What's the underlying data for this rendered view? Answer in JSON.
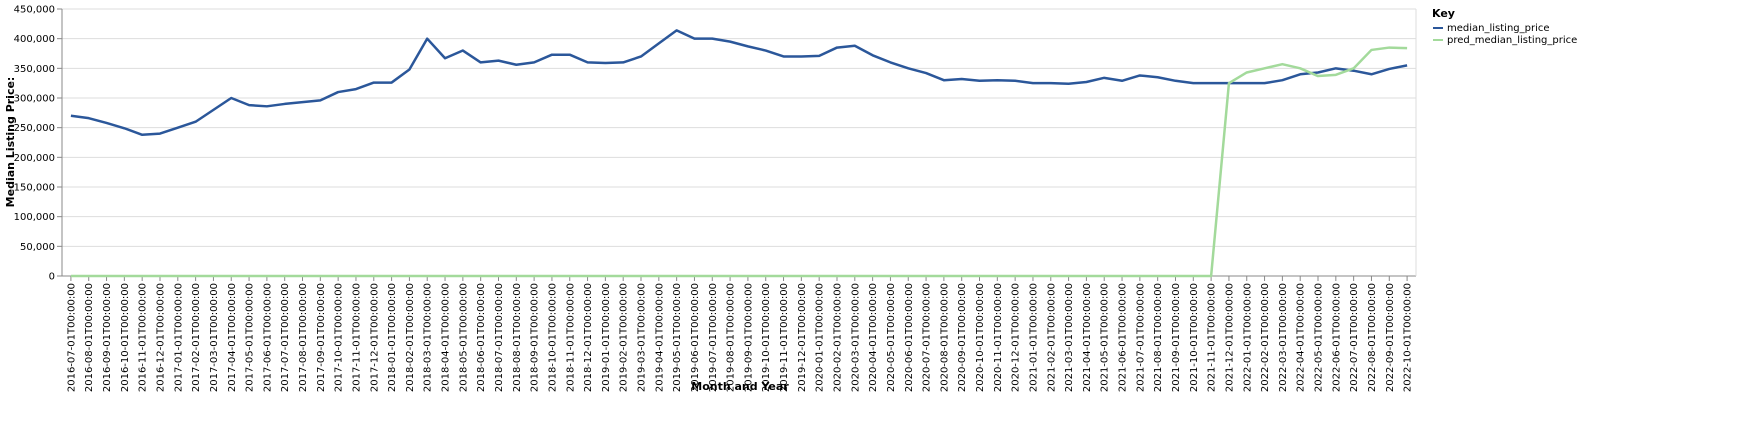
{
  "chart_data": {
    "type": "line",
    "x_label": "Month and Year",
    "y_label": "Median Listing Price:",
    "legend_title": "Key",
    "legend": "right",
    "grid": true,
    "categories": [
      "2016-07-01T00:00:00",
      "2016-08-01T00:00:00",
      "2016-09-01T00:00:00",
      "2016-10-01T00:00:00",
      "2016-11-01T00:00:00",
      "2016-12-01T00:00:00",
      "2017-01-01T00:00:00",
      "2017-02-01T00:00:00",
      "2017-03-01T00:00:00",
      "2017-04-01T00:00:00",
      "2017-05-01T00:00:00",
      "2017-06-01T00:00:00",
      "2017-07-01T00:00:00",
      "2017-08-01T00:00:00",
      "2017-09-01T00:00:00",
      "2017-10-01T00:00:00",
      "2017-11-01T00:00:00",
      "2017-12-01T00:00:00",
      "2018-01-01T00:00:00",
      "2018-02-01T00:00:00",
      "2018-03-01T00:00:00",
      "2018-04-01T00:00:00",
      "2018-05-01T00:00:00",
      "2018-06-01T00:00:00",
      "2018-07-01T00:00:00",
      "2018-08-01T00:00:00",
      "2018-09-01T00:00:00",
      "2018-10-01T00:00:00",
      "2018-11-01T00:00:00",
      "2018-12-01T00:00:00",
      "2019-01-01T00:00:00",
      "2019-02-01T00:00:00",
      "2019-03-01T00:00:00",
      "2019-04-01T00:00:00",
      "2019-05-01T00:00:00",
      "2019-06-01T00:00:00",
      "2019-07-01T00:00:00",
      "2019-08-01T00:00:00",
      "2019-09-01T00:00:00",
      "2019-10-01T00:00:00",
      "2019-11-01T00:00:00",
      "2019-12-01T00:00:00",
      "2020-01-01T00:00:00",
      "2020-02-01T00:00:00",
      "2020-03-01T00:00:00",
      "2020-04-01T00:00:00",
      "2020-05-01T00:00:00",
      "2020-06-01T00:00:00",
      "2020-07-01T00:00:00",
      "2020-08-01T00:00:00",
      "2020-09-01T00:00:00",
      "2020-10-01T00:00:00",
      "2020-11-01T00:00:00",
      "2020-12-01T00:00:00",
      "2021-01-01T00:00:00",
      "2021-02-01T00:00:00",
      "2021-03-01T00:00:00",
      "2021-04-01T00:00:00",
      "2021-05-01T00:00:00",
      "2021-06-01T00:00:00",
      "2021-07-01T00:00:00",
      "2021-08-01T00:00:00",
      "2021-09-01T00:00:00",
      "2021-10-01T00:00:00",
      "2021-11-01T00:00:00",
      "2021-12-01T00:00:00",
      "2022-01-01T00:00:00",
      "2022-02-01T00:00:00",
      "2022-03-01T00:00:00",
      "2022-04-01T00:00:00",
      "2022-05-01T00:00:00",
      "2022-06-01T00:00:00",
      "2022-07-01T00:00:00",
      "2022-08-01T00:00:00",
      "2022-09-01T00:00:00",
      "2022-10-01T00:00:00"
    ],
    "series": [
      {
        "name": "median_listing_price",
        "color": "#2b579a",
        "values": [
          270000,
          266000,
          258000,
          249000,
          238000,
          240000,
          250000,
          260000,
          280000,
          300000,
          288000,
          286000,
          290000,
          293000,
          296000,
          310000,
          315000,
          326000,
          326000,
          348000,
          400000,
          367000,
          380000,
          360000,
          363000,
          356000,
          360000,
          373000,
          373000,
          360000,
          359000,
          360000,
          370000,
          392000,
          414000,
          400000,
          400000,
          395000,
          387000,
          380000,
          370000,
          370000,
          371000,
          385000,
          388000,
          372000,
          360000,
          350000,
          342000,
          330000,
          332000,
          329000,
          330000,
          329000,
          325000,
          325000,
          324000,
          327000,
          334000,
          329000,
          338000,
          335000,
          329000,
          325000,
          325000,
          325000,
          325000,
          325000,
          330000,
          340000,
          343000,
          350000,
          346000,
          340000,
          349000,
          355000
        ]
      },
      {
        "name": "pred_median_listing_price",
        "color": "#a3da9b",
        "values": [
          0,
          0,
          0,
          0,
          0,
          0,
          0,
          0,
          0,
          0,
          0,
          0,
          0,
          0,
          0,
          0,
          0,
          0,
          0,
          0,
          0,
          0,
          0,
          0,
          0,
          0,
          0,
          0,
          0,
          0,
          0,
          0,
          0,
          0,
          0,
          0,
          0,
          0,
          0,
          0,
          0,
          0,
          0,
          0,
          0,
          0,
          0,
          0,
          0,
          0,
          0,
          0,
          0,
          0,
          0,
          0,
          0,
          0,
          0,
          0,
          0,
          0,
          0,
          0,
          0,
          325000,
          343000,
          350000,
          357000,
          350000,
          337000,
          339000,
          350000,
          381000,
          385000,
          384000
        ]
      }
    ],
    "ylim": [
      0,
      450000
    ],
    "yticks": [
      0,
      {
        "value": 50000,
        "label": "50,000"
      },
      {
        "value": 100000,
        "label": "100,000"
      },
      {
        "value": 150000,
        "label": "150,000"
      },
      {
        "value": 200000,
        "label": "200,000"
      },
      {
        "value": 250000,
        "label": "250,000"
      },
      {
        "value": 300000,
        "label": "300,000"
      },
      {
        "value": 350000,
        "label": "350,000"
      },
      {
        "value": 400000,
        "label": "400,000"
      },
      {
        "value": 450000,
        "label": "450,000"
      }
    ]
  }
}
